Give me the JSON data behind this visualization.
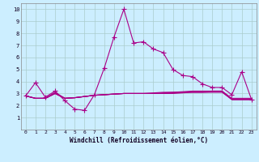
{
  "xlabel": "Windchill (Refroidissement éolien,°C)",
  "bg_color": "#cceeff",
  "grid_color": "#aacccc",
  "line_color": "#aa0088",
  "xlim": [
    -0.5,
    23.5
  ],
  "ylim": [
    0,
    10.5
  ],
  "xticks": [
    0,
    1,
    2,
    3,
    4,
    5,
    6,
    7,
    8,
    9,
    10,
    11,
    12,
    13,
    14,
    15,
    16,
    17,
    18,
    19,
    20,
    21,
    22,
    23
  ],
  "yticks": [
    1,
    2,
    3,
    4,
    5,
    6,
    7,
    8,
    9,
    10
  ],
  "series_main": [
    2.8,
    3.9,
    2.7,
    3.2,
    2.4,
    1.7,
    1.6,
    2.9,
    5.1,
    7.7,
    10.0,
    7.2,
    7.3,
    6.7,
    6.4,
    5.0,
    4.5,
    4.4,
    3.8,
    3.5,
    3.5,
    2.9,
    4.8,
    2.5
  ],
  "series_flat": [
    [
      2.8,
      2.6,
      2.6,
      3.1,
      2.6,
      2.65,
      2.75,
      2.85,
      2.9,
      2.95,
      3.0,
      3.0,
      3.0,
      3.05,
      3.1,
      3.1,
      3.15,
      3.2,
      3.2,
      3.2,
      3.2,
      2.6,
      2.6,
      2.6
    ],
    [
      2.8,
      2.6,
      2.6,
      3.0,
      2.6,
      2.65,
      2.75,
      2.85,
      2.9,
      2.95,
      3.0,
      3.0,
      3.0,
      3.0,
      3.05,
      3.1,
      3.1,
      3.15,
      3.15,
      3.2,
      3.2,
      2.5,
      2.5,
      2.5
    ],
    [
      2.8,
      2.6,
      2.6,
      3.0,
      2.6,
      2.65,
      2.75,
      2.85,
      2.9,
      2.95,
      3.0,
      3.0,
      3.0,
      3.0,
      3.0,
      3.05,
      3.1,
      3.1,
      3.1,
      3.15,
      3.15,
      2.5,
      2.5,
      2.5
    ],
    [
      2.8,
      2.6,
      2.6,
      3.0,
      2.6,
      2.65,
      2.75,
      2.85,
      2.9,
      2.95,
      3.0,
      3.0,
      3.0,
      3.0,
      3.0,
      3.0,
      3.05,
      3.1,
      3.1,
      3.1,
      3.1,
      2.5,
      2.5,
      2.5
    ]
  ]
}
